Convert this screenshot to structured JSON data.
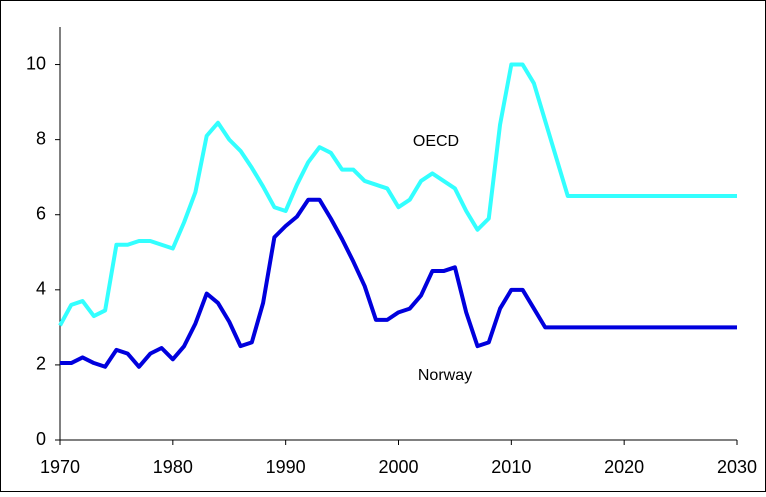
{
  "chart_data": {
    "type": "line",
    "x": [
      1970,
      1971,
      1972,
      1973,
      1974,
      1975,
      1976,
      1977,
      1978,
      1979,
      1980,
      1981,
      1982,
      1983,
      1984,
      1985,
      1986,
      1987,
      1988,
      1989,
      1990,
      1991,
      1992,
      1993,
      1994,
      1995,
      1996,
      1997,
      1998,
      1999,
      2000,
      2001,
      2002,
      2003,
      2004,
      2005,
      2006,
      2007,
      2008,
      2009,
      2010,
      2011,
      2012,
      2013,
      2014,
      2015,
      2016,
      2017,
      2018,
      2019,
      2020,
      2021,
      2022,
      2023,
      2024,
      2025,
      2026,
      2027,
      2028,
      2029,
      2030
    ],
    "series": [
      {
        "name": "OECD",
        "color": "#33ffff",
        "values": [
          3.05,
          3.6,
          3.7,
          3.3,
          3.45,
          5.2,
          5.2,
          5.3,
          5.3,
          5.2,
          5.1,
          5.8,
          6.6,
          8.1,
          8.45,
          8.0,
          7.7,
          7.25,
          6.75,
          6.2,
          6.1,
          6.8,
          7.4,
          7.8,
          7.65,
          7.2,
          7.2,
          6.9,
          6.8,
          6.7,
          6.2,
          6.4,
          6.9,
          7.1,
          6.9,
          6.7,
          6.1,
          5.6,
          5.9,
          8.4,
          10,
          10,
          9.5,
          8.5,
          7.5,
          6.5,
          6.5,
          6.5,
          6.5,
          6.5,
          6.5,
          6.5,
          6.5,
          6.5,
          6.5,
          6.5,
          6.5,
          6.5,
          6.5,
          6.5,
          6.5
        ]
      },
      {
        "name": "Norway",
        "color": "#0000dd",
        "values": [
          2.05,
          2.05,
          2.2,
          2.05,
          1.95,
          2.4,
          2.3,
          1.95,
          2.3,
          2.45,
          2.15,
          2.5,
          3.1,
          3.9,
          3.65,
          3.15,
          2.5,
          2.6,
          3.65,
          5.4,
          5.7,
          5.95,
          6.4,
          6.4,
          5.9,
          5.35,
          4.75,
          4.1,
          3.2,
          3.2,
          3.4,
          3.5,
          3.85,
          4.5,
          4.5,
          4.6,
          3.4,
          2.5,
          2.6,
          3.5,
          4,
          4,
          3.5,
          3,
          3,
          3,
          3,
          3,
          3,
          3,
          3,
          3,
          3,
          3,
          3,
          3,
          3,
          3,
          3,
          3,
          3
        ]
      }
    ],
    "xlim": [
      1970,
      2030
    ],
    "xticks": [
      1970,
      1980,
      1990,
      2000,
      2010,
      2020,
      2030
    ],
    "ylim": [
      0,
      11
    ],
    "yticks": [
      0,
      2,
      4,
      6,
      8,
      10
    ]
  }
}
